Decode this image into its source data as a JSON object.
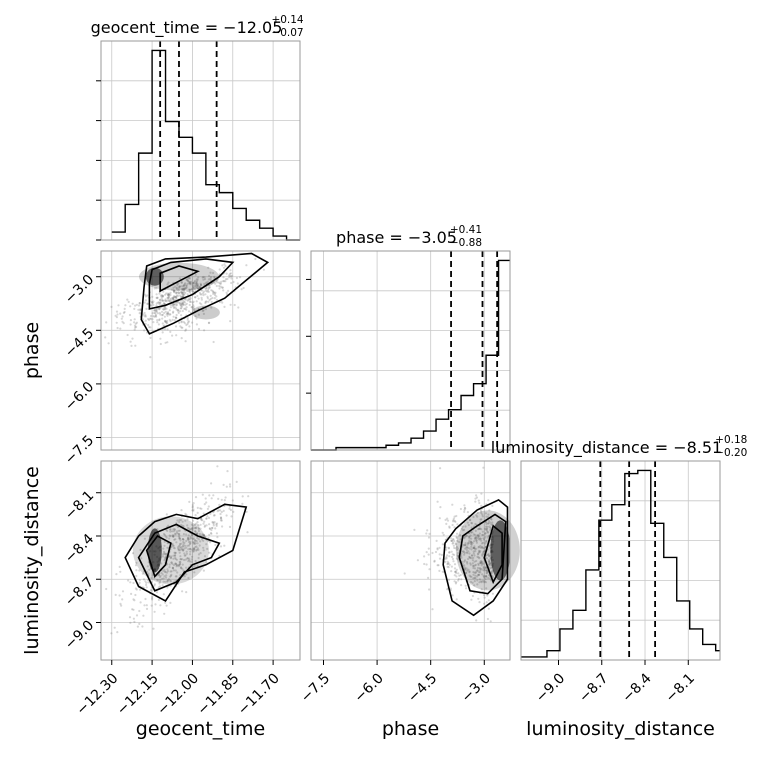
{
  "chart_data": {
    "type": "corner",
    "parameters": [
      "geocent_time",
      "phase",
      "luminosity_distance"
    ],
    "axis_labels": {
      "geocent_time": "geocent_time",
      "phase": "phase",
      "luminosity_distance": "luminosity_distance"
    },
    "ranges": {
      "geocent_time": [
        -12.34,
        -11.6
      ],
      "phase": [
        -7.85,
        -2.28
      ],
      "luminosity_distance": [
        -9.26,
        -7.88
      ]
    },
    "ticks": {
      "geocent_time": [
        -12.3,
        -12.15,
        -12.0,
        -11.85,
        -11.7
      ],
      "phase": [
        -7.5,
        -6.0,
        -4.5,
        -3.0
      ],
      "luminosity_distance": [
        -9.0,
        -8.7,
        -8.4,
        -8.1
      ]
    },
    "tick_labels": {
      "geocent_time": [
        "−12.30",
        "−12.15",
        "−12.00",
        "−11.85",
        "−11.70"
      ],
      "phase": [
        "−7.5",
        "−6.0",
        "−4.5",
        "−3.0"
      ],
      "luminosity_distance": [
        "−9.0",
        "−8.7",
        "−8.4",
        "−8.1"
      ]
    },
    "titles": [
      {
        "param": "geocent_time",
        "main": "geocent_time = −12.05",
        "upper": "+0.14",
        "lower": "−0.07"
      },
      {
        "param": "phase",
        "main": "phase = −3.05",
        "upper": "+0.41",
        "lower": "−0.88"
      },
      {
        "param": "luminosity_distance",
        "main": "luminosity_distance = −8.51",
        "upper": "+0.18",
        "lower": "−0.20"
      }
    ],
    "quantiles": {
      "geocent_time": [
        -12.12,
        -12.05,
        -11.91
      ],
      "phase": [
        -3.93,
        -3.05,
        -2.64
      ],
      "luminosity_distance": [
        -8.71,
        -8.51,
        -8.33
      ]
    },
    "histograms": {
      "geocent_time": {
        "edges": [
          -12.3,
          -12.25,
          -12.2,
          -12.15,
          -12.1,
          -12.05,
          -12.0,
          -11.95,
          -11.9,
          -11.85,
          -11.8,
          -11.75,
          -11.7,
          -11.65,
          -11.6
        ],
        "counts": [
          2,
          9,
          22,
          48,
          30,
          26,
          22,
          14,
          12,
          8,
          5,
          3,
          1,
          0
        ]
      },
      "phase": {
        "edges": [
          -7.85,
          -7.5,
          -7.15,
          -6.8,
          -6.45,
          -6.1,
          -5.75,
          -5.4,
          -5.05,
          -4.7,
          -4.35,
          -4.0,
          -3.65,
          -3.3,
          -2.95,
          -2.6,
          -2.28
        ],
        "counts": [
          0,
          0,
          1,
          1,
          1,
          1,
          2,
          3,
          5,
          8,
          13,
          17,
          23,
          28,
          40,
          80
        ]
      },
      "luminosity_distance": {
        "edges": [
          -9.26,
          -9.17,
          -9.08,
          -8.99,
          -8.9,
          -8.81,
          -8.72,
          -8.63,
          -8.54,
          -8.45,
          -8.36,
          -8.27,
          -8.18,
          -8.09,
          -8.0,
          -7.91,
          -7.88
        ],
        "counts": [
          1,
          1,
          3,
          10,
          16,
          29,
          45,
          50,
          60,
          61,
          44,
          33,
          19,
          10,
          5,
          3
        ]
      }
    },
    "density_2d": [
      {
        "x": "geocent_time",
        "y": "phase",
        "peak": [
          -12.14,
          -3.0
        ]
      },
      {
        "x": "geocent_time",
        "y": "luminosity_distance",
        "peak": [
          -12.14,
          -8.5
        ]
      },
      {
        "x": "phase",
        "y": "luminosity_distance",
        "peak": [
          -2.6,
          -8.5
        ]
      }
    ]
  }
}
